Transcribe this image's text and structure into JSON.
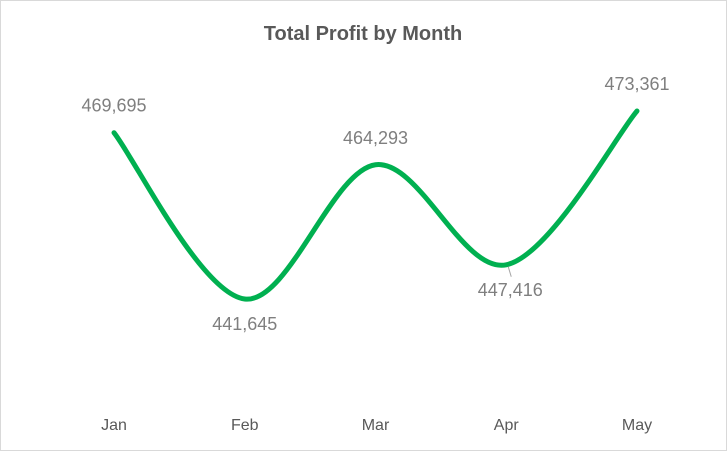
{
  "chart_data": {
    "type": "line",
    "title": "Total Profit by Month",
    "xlabel": "",
    "ylabel": "",
    "categories": [
      "Jan",
      "Feb",
      "Mar",
      "Apr",
      "May"
    ],
    "series": [
      {
        "values": [
          469695,
          441645,
          464293,
          447416,
          473361
        ],
        "data_labels": [
          "469,695",
          "441,645",
          "464,293",
          "447,416",
          "473,361"
        ],
        "color": "#00b050",
        "smooth": true
      }
    ],
    "grid": false,
    "legend": "none",
    "y_axis_visible": false
  }
}
